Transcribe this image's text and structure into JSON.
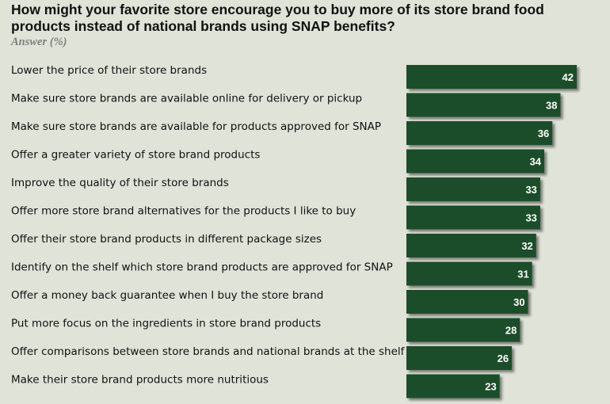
{
  "chart_data": {
    "type": "bar",
    "orientation": "horizontal",
    "title": "How might your favorite store encourage you to buy more of its store brand food products instead of national brands using SNAP benefits?",
    "subtitle": "Answer (%)",
    "categories": [
      "Lower the price of their store brands",
      "Make sure store brands are available online for delivery or pickup",
      "Make sure store brands are available for products approved for SNAP",
      "Offer a greater variety of store brand products",
      "Improve the quality of their store brands",
      "Offer more store brand alternatives for the products I like to buy",
      "Offer their store brand products in different package sizes",
      "Identify on the shelf which store brand products are approved for SNAP",
      "Offer a money back guarantee when I buy the store brand",
      "Put more focus on the ingredients in store brand products",
      "Offer comparisons between store brands and national brands at the shelf",
      "Make their store brand products more nutritious"
    ],
    "values": [
      42,
      38,
      36,
      34,
      33,
      33,
      32,
      31,
      30,
      28,
      26,
      23
    ],
    "data_labels": true,
    "grid": false,
    "legend": "none",
    "bar_color": "#1c4d2a",
    "background_color": "#dfe3d8"
  }
}
